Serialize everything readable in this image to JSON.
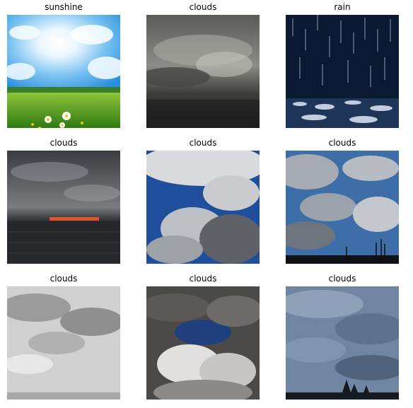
{
  "grid": {
    "items": [
      {
        "label": "sunshine",
        "scene": "sunshine-meadow"
      },
      {
        "label": "clouds",
        "scene": "dark-storm"
      },
      {
        "label": "rain",
        "scene": "rain-splash"
      },
      {
        "label": "clouds",
        "scene": "sunset-sea"
      },
      {
        "label": "clouds",
        "scene": "blue-sky-cumulus"
      },
      {
        "label": "clouds",
        "scene": "blue-sky-horizon-poles"
      },
      {
        "label": "clouds",
        "scene": "overcast-light"
      },
      {
        "label": "clouds",
        "scene": "cloud-hole-blue"
      },
      {
        "label": "clouds",
        "scene": "overcast-trees"
      }
    ]
  }
}
